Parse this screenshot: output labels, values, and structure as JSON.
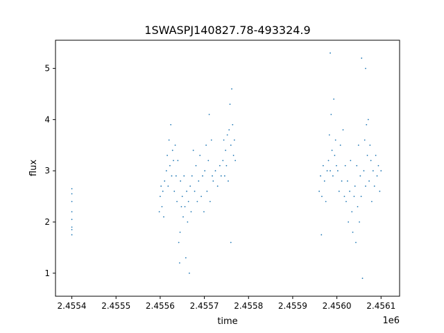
{
  "chart_data": {
    "type": "scatter",
    "title": "1SWASPJ140827.78-493324.9",
    "xlabel": "time",
    "ylabel": "flux",
    "x_offset_label": "1e6",
    "xlim": [
      2455363,
      2456142
    ],
    "ylim": [
      0.55,
      5.55
    ],
    "x_ticks": [
      2455400,
      2455500,
      2455600,
      2455700,
      2455800,
      2455900,
      2456000,
      2456100
    ],
    "x_tick_labels": [
      "2.4554",
      "2.4555",
      "2.4556",
      "2.4557",
      "2.4558",
      "2.4559",
      "2.4560",
      "2.4561"
    ],
    "y_ticks": [
      1,
      2,
      3,
      4,
      5
    ],
    "y_tick_labels": [
      "1",
      "2",
      "3",
      "4",
      "5"
    ],
    "grid": false,
    "marker_color": "#1f77b4",
    "points": [
      [
        2455400,
        1.75
      ],
      [
        2455400,
        1.85
      ],
      [
        2455400,
        1.9
      ],
      [
        2455400,
        2.05
      ],
      [
        2455400,
        2.2
      ],
      [
        2455400,
        2.4
      ],
      [
        2455400,
        2.55
      ],
      [
        2455400,
        2.65
      ],
      [
        2455598,
        2.2
      ],
      [
        2455600,
        2.5
      ],
      [
        2455602,
        2.7
      ],
      [
        2455604,
        2.3
      ],
      [
        2455606,
        2.6
      ],
      [
        2455608,
        2.1
      ],
      [
        2455610,
        2.8
      ],
      [
        2455614,
        3.0
      ],
      [
        2455616,
        3.3
      ],
      [
        2455618,
        2.7
      ],
      [
        2455620,
        3.6
      ],
      [
        2455622,
        3.1
      ],
      [
        2455624,
        3.9
      ],
      [
        2455626,
        2.9
      ],
      [
        2455628,
        3.4
      ],
      [
        2455630,
        3.2
      ],
      [
        2455632,
        2.6
      ],
      [
        2455634,
        3.5
      ],
      [
        2455636,
        2.9
      ],
      [
        2455638,
        2.4
      ],
      [
        2455640,
        3.2
      ],
      [
        2455642,
        1.6
      ],
      [
        2455644,
        1.2
      ],
      [
        2455645,
        1.8
      ],
      [
        2455646,
        2.8
      ],
      [
        2455648,
        2.3
      ],
      [
        2455650,
        2.5
      ],
      [
        2455652,
        2.1
      ],
      [
        2455654,
        2.9
      ],
      [
        2455656,
        2.3
      ],
      [
        2455658,
        1.3
      ],
      [
        2455660,
        2.6
      ],
      [
        2455662,
        2.0
      ],
      [
        2455664,
        2.4
      ],
      [
        2455666,
        1.0
      ],
      [
        2455668,
        2.7
      ],
      [
        2455670,
        2.2
      ],
      [
        2455672,
        2.9
      ],
      [
        2455675,
        3.4
      ],
      [
        2455678,
        2.6
      ],
      [
        2455681,
        3.1
      ],
      [
        2455684,
        2.4
      ],
      [
        2455687,
        2.8
      ],
      [
        2455690,
        3.3
      ],
      [
        2455693,
        2.5
      ],
      [
        2455696,
        2.9
      ],
      [
        2455699,
        2.2
      ],
      [
        2455701,
        3.0
      ],
      [
        2455704,
        3.5
      ],
      [
        2455706,
        2.6
      ],
      [
        2455709,
        3.2
      ],
      [
        2455711,
        4.1
      ],
      [
        2455713,
        2.4
      ],
      [
        2455716,
        3.6
      ],
      [
        2455718,
        2.9
      ],
      [
        2455720,
        2.8
      ],
      [
        2455725,
        3.0
      ],
      [
        2455730,
        2.7
      ],
      [
        2455735,
        3.1
      ],
      [
        2455738,
        2.9
      ],
      [
        2455742,
        3.2
      ],
      [
        2455744,
        3.6
      ],
      [
        2455746,
        2.9
      ],
      [
        2455748,
        3.4
      ],
      [
        2455750,
        3.1
      ],
      [
        2455752,
        3.7
      ],
      [
        2455754,
        2.8
      ],
      [
        2455756,
        3.8
      ],
      [
        2455758,
        4.3
      ],
      [
        2455760,
        3.5
      ],
      [
        2455762,
        4.6
      ],
      [
        2455764,
        3.9
      ],
      [
        2455766,
        3.3
      ],
      [
        2455768,
        3.6
      ],
      [
        2455770,
        3.2
      ],
      [
        2455760,
        1.6
      ],
      [
        2455960,
        2.6
      ],
      [
        2455963,
        2.9
      ],
      [
        2455966,
        2.5
      ],
      [
        2455969,
        3.1
      ],
      [
        2455972,
        2.8
      ],
      [
        2455975,
        2.4
      ],
      [
        2455978,
        3.0
      ],
      [
        2455965,
        1.75
      ],
      [
        2455981,
        3.2
      ],
      [
        2455983,
        3.7
      ],
      [
        2455985,
        3.0
      ],
      [
        2455987,
        4.1
      ],
      [
        2455989,
        3.4
      ],
      [
        2455991,
        2.9
      ],
      [
        2455993,
        4.4
      ],
      [
        2455995,
        3.3
      ],
      [
        2455997,
        3.6
      ],
      [
        2455999,
        3.1
      ],
      [
        2455985,
        5.3
      ],
      [
        2456002,
        3.0
      ],
      [
        2456005,
        2.6
      ],
      [
        2456008,
        3.5
      ],
      [
        2456011,
        2.8
      ],
      [
        2456014,
        3.8
      ],
      [
        2456017,
        2.5
      ],
      [
        2456019,
        3.1
      ],
      [
        2456021,
        2.4
      ],
      [
        2456024,
        2.8
      ],
      [
        2456026,
        2.0
      ],
      [
        2456029,
        2.6
      ],
      [
        2456031,
        3.2
      ],
      [
        2456034,
        2.2
      ],
      [
        2456036,
        1.8
      ],
      [
        2456039,
        2.5
      ],
      [
        2456041,
        2.7
      ],
      [
        2456043,
        1.6
      ],
      [
        2456045,
        3.1
      ],
      [
        2456047,
        2.3
      ],
      [
        2456049,
        3.5
      ],
      [
        2456051,
        2.0
      ],
      [
        2456053,
        2.9
      ],
      [
        2456055,
        2.5
      ],
      [
        2456058,
        0.9
      ],
      [
        2456056,
        5.2
      ],
      [
        2456061,
        3.0
      ],
      [
        2456063,
        3.6
      ],
      [
        2456065,
        2.7
      ],
      [
        2456067,
        3.9
      ],
      [
        2456069,
        3.3
      ],
      [
        2456071,
        4.0
      ],
      [
        2456073,
        2.8
      ],
      [
        2456075,
        3.5
      ],
      [
        2456077,
        3.2
      ],
      [
        2456079,
        2.4
      ],
      [
        2456065,
        5.0
      ],
      [
        2456082,
        3.0
      ],
      [
        2456085,
        2.7
      ],
      [
        2456088,
        3.3
      ],
      [
        2456091,
        2.9
      ],
      [
        2456094,
        3.1
      ],
      [
        2456097,
        2.6
      ],
      [
        2456100,
        3.0
      ]
    ]
  }
}
